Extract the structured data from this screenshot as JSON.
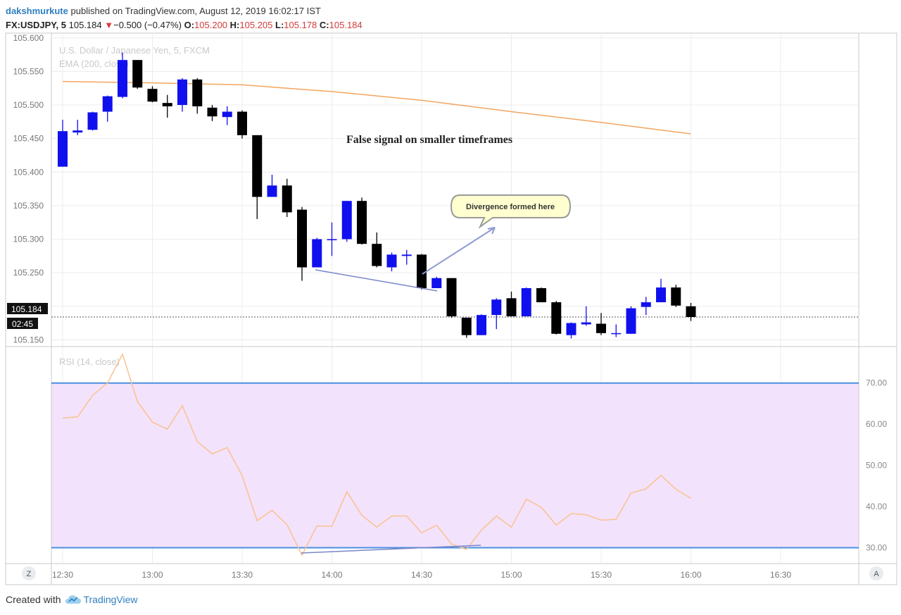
{
  "header": {
    "author": "dakshmurkute",
    "published": "published on TradingView.com, August 12, 2019 16:02:17 IST",
    "symbol": "FX:USDJPY, 5",
    "last": "105.184",
    "change_arrow": "▼",
    "change": "−0.500 (−0.47%)",
    "o_label": "O:",
    "o_val": "105.200",
    "h_label": "H:",
    "h_val": "105.205",
    "l_label": "L:",
    "l_val": "105.178",
    "c_label": "C:",
    "c_val": "105.184"
  },
  "legend": {
    "series_title": "U.S. Dollar / Japanese Yen, 5, FXCM",
    "ema_title": "EMA (200, close)",
    "rsi_title": "RSI (14, close)"
  },
  "annotations": {
    "headline": "False signal on smaller timeframes",
    "callout": "Divergence formed here"
  },
  "price_badge": {
    "price": "105.184",
    "countdown": "02:45"
  },
  "corner_buttons": {
    "left": "Z",
    "right": "A"
  },
  "footer": {
    "created_with": "Created with",
    "brand": "TradingView"
  },
  "colors": {
    "bull": "#1010ee",
    "bear": "#000000",
    "ema": "#f4a460",
    "rsi_line": "#f9c28f",
    "rsi_band_fill": "#f3e2fb",
    "rsi_band_line": "#4a90e2",
    "divergence_line": "#7b86c8",
    "callout_fill": "#ffffd0"
  },
  "chart_data": [
    {
      "type": "candlestick",
      "title": "U.S. Dollar / Japanese Yen, 5, FXCM",
      "x_ticks": [
        "12:30",
        "13:00",
        "13:30",
        "14:00",
        "14:30",
        "15:00",
        "15:30",
        "16:00",
        "16:30"
      ],
      "y_ticks": [
        "105.600",
        "105.550",
        "105.500",
        "105.450",
        "105.400",
        "105.350",
        "105.300",
        "105.250",
        "105.200",
        "105.150"
      ],
      "ylim": [
        105.142,
        105.605
      ],
      "candles": [
        {
          "t": "12:30",
          "o": 105.408,
          "h": 105.478,
          "l": 105.408,
          "c": 105.461
        },
        {
          "t": "12:35",
          "o": 105.459,
          "h": 105.478,
          "l": 105.455,
          "c": 105.462
        },
        {
          "t": "12:40",
          "o": 105.463,
          "h": 105.49,
          "l": 105.462,
          "c": 105.489
        },
        {
          "t": "12:45",
          "o": 105.49,
          "h": 105.514,
          "l": 105.475,
          "c": 105.513
        },
        {
          "t": "12:50",
          "o": 105.512,
          "h": 105.578,
          "l": 105.51,
          "c": 105.567
        },
        {
          "t": "12:55",
          "o": 105.567,
          "h": 105.567,
          "l": 105.524,
          "c": 105.526
        },
        {
          "t": "13:00",
          "o": 105.524,
          "h": 105.528,
          "l": 105.504,
          "c": 105.505
        },
        {
          "t": "13:05",
          "o": 105.503,
          "h": 105.515,
          "l": 105.481,
          "c": 105.498
        },
        {
          "t": "13:10",
          "o": 105.5,
          "h": 105.54,
          "l": 105.49,
          "c": 105.538
        },
        {
          "t": "13:15",
          "o": 105.538,
          "h": 105.54,
          "l": 105.487,
          "c": 105.498
        },
        {
          "t": "13:20",
          "o": 105.496,
          "h": 105.5,
          "l": 105.476,
          "c": 105.483
        },
        {
          "t": "13:25",
          "o": 105.482,
          "h": 105.498,
          "l": 105.47,
          "c": 105.49
        },
        {
          "t": "13:30",
          "o": 105.49,
          "h": 105.492,
          "l": 105.45,
          "c": 105.455
        },
        {
          "t": "13:35",
          "o": 105.455,
          "h": 105.455,
          "l": 105.33,
          "c": 105.363
        },
        {
          "t": "13:40",
          "o": 105.363,
          "h": 105.396,
          "l": 105.363,
          "c": 105.38
        },
        {
          "t": "13:45",
          "o": 105.38,
          "h": 105.39,
          "l": 105.333,
          "c": 105.34
        },
        {
          "t": "13:50",
          "o": 105.344,
          "h": 105.348,
          "l": 105.238,
          "c": 105.258
        },
        {
          "t": "13:55",
          "o": 105.258,
          "h": 105.302,
          "l": 105.258,
          "c": 105.3
        },
        {
          "t": "14:00",
          "o": 105.3,
          "h": 105.325,
          "l": 105.275,
          "c": 105.3
        },
        {
          "t": "14:05",
          "o": 105.3,
          "h": 105.357,
          "l": 105.296,
          "c": 105.357
        },
        {
          "t": "14:10",
          "o": 105.357,
          "h": 105.362,
          "l": 105.292,
          "c": 105.293
        },
        {
          "t": "14:15",
          "o": 105.293,
          "h": 105.31,
          "l": 105.258,
          "c": 105.26
        },
        {
          "t": "14:20",
          "o": 105.258,
          "h": 105.28,
          "l": 105.252,
          "c": 105.277
        },
        {
          "t": "14:25",
          "o": 105.275,
          "h": 105.284,
          "l": 105.262,
          "c": 105.277
        },
        {
          "t": "14:30",
          "o": 105.277,
          "h": 105.278,
          "l": 105.225,
          "c": 105.227
        },
        {
          "t": "14:35",
          "o": 105.227,
          "h": 105.244,
          "l": 105.227,
          "c": 105.242
        },
        {
          "t": "14:40",
          "o": 105.242,
          "h": 105.242,
          "l": 105.183,
          "c": 105.185
        },
        {
          "t": "14:45",
          "o": 105.183,
          "h": 105.183,
          "l": 105.153,
          "c": 105.157
        },
        {
          "t": "14:50",
          "o": 105.157,
          "h": 105.188,
          "l": 105.157,
          "c": 105.187
        },
        {
          "t": "14:55",
          "o": 105.187,
          "h": 105.212,
          "l": 105.166,
          "c": 105.21
        },
        {
          "t": "15:00",
          "o": 105.212,
          "h": 105.222,
          "l": 105.185,
          "c": 105.185
        },
        {
          "t": "15:05",
          "o": 105.185,
          "h": 105.228,
          "l": 105.185,
          "c": 105.227
        },
        {
          "t": "15:10",
          "o": 105.227,
          "h": 105.228,
          "l": 105.206,
          "c": 105.206
        },
        {
          "t": "15:15",
          "o": 105.206,
          "h": 105.208,
          "l": 105.158,
          "c": 105.159
        },
        {
          "t": "15:20",
          "o": 105.157,
          "h": 105.176,
          "l": 105.152,
          "c": 105.175
        },
        {
          "t": "15:25",
          "o": 105.173,
          "h": 105.2,
          "l": 105.171,
          "c": 105.176
        },
        {
          "t": "15:30",
          "o": 105.174,
          "h": 105.19,
          "l": 105.157,
          "c": 105.16
        },
        {
          "t": "15:35",
          "o": 105.159,
          "h": 105.173,
          "l": 105.154,
          "c": 105.16
        },
        {
          "t": "15:40",
          "o": 105.159,
          "h": 105.2,
          "l": 105.159,
          "c": 105.197
        },
        {
          "t": "15:45",
          "o": 105.199,
          "h": 105.214,
          "l": 105.187,
          "c": 105.206
        },
        {
          "t": "15:50",
          "o": 105.206,
          "h": 105.241,
          "l": 105.206,
          "c": 105.228
        },
        {
          "t": "15:55",
          "o": 105.228,
          "h": 105.232,
          "l": 105.199,
          "c": 105.201
        },
        {
          "t": "16:00",
          "o": 105.2,
          "h": 105.205,
          "l": 105.178,
          "c": 105.184
        }
      ],
      "ema_200": {
        "name": "EMA (200, close)",
        "x": [
          "12:30",
          "13:00",
          "13:30",
          "14:00",
          "14:30",
          "15:00",
          "15:30",
          "16:00"
        ],
        "values": [
          105.535,
          105.533,
          105.53,
          105.52,
          105.507,
          105.49,
          105.474,
          105.457
        ]
      },
      "last_price": 105.184
    },
    {
      "type": "line",
      "title": "RSI (14, close)",
      "y_ticks": [
        "70.00",
        "60.00",
        "50.00",
        "40.00",
        "30.00"
      ],
      "ylim": [
        26.5,
        78.5
      ],
      "bands": {
        "upper": 70,
        "lower": 30
      },
      "x": [
        "12:30",
        "12:35",
        "12:40",
        "12:45",
        "12:50",
        "12:55",
        "13:00",
        "13:05",
        "13:10",
        "13:15",
        "13:20",
        "13:25",
        "13:30",
        "13:35",
        "13:40",
        "13:45",
        "13:50",
        "13:55",
        "14:00",
        "14:05",
        "14:10",
        "14:15",
        "14:20",
        "14:25",
        "14:30",
        "14:35",
        "14:40",
        "14:45",
        "14:50",
        "14:55",
        "15:00",
        "15:05",
        "15:10",
        "15:15",
        "15:20",
        "15:25",
        "15:30",
        "15:35",
        "15:40",
        "15:45",
        "15:50",
        "15:55",
        "16:00"
      ],
      "values": [
        61.5,
        61.8,
        67.0,
        70.0,
        77.0,
        65.5,
        60.5,
        58.8,
        64.5,
        55.8,
        52.8,
        54.3,
        47.5,
        36.6,
        39.1,
        35.6,
        28.2,
        35.3,
        35.2,
        43.6,
        37.9,
        35.0,
        37.7,
        37.7,
        33.6,
        35.5,
        30.9,
        29.6,
        34.3,
        37.7,
        35.0,
        41.8,
        39.8,
        35.5,
        38.3,
        38.0,
        36.7,
        36.9,
        43.3,
        44.3,
        47.6,
        44.2,
        42.0
      ]
    }
  ]
}
